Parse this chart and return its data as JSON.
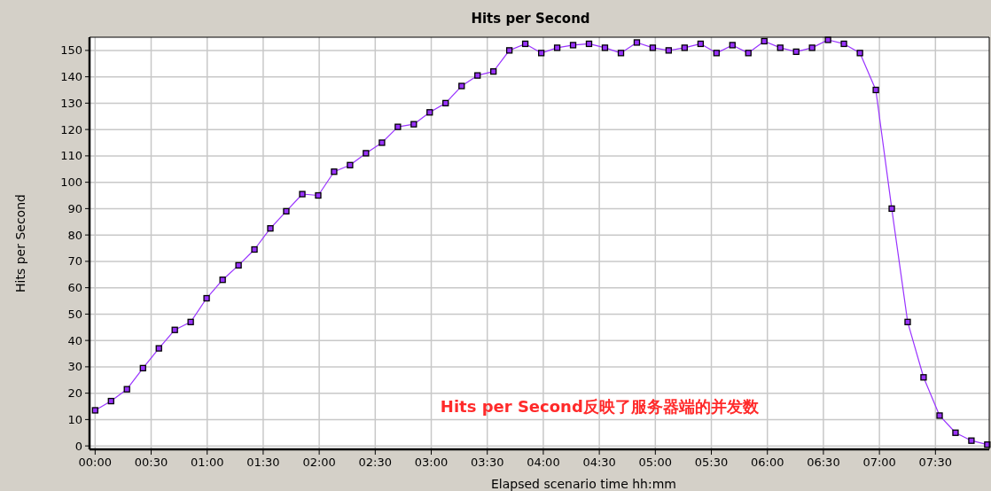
{
  "chart_data": {
    "type": "line",
    "title": "Hits per Second",
    "xlabel": "Elapsed scenario time hh:mm",
    "ylabel": "Hits per Second",
    "annotations": [
      "Hits per Second反映了服务器端的并发数"
    ],
    "x": [
      0,
      0.142,
      0.284,
      0.427,
      0.569,
      0.711,
      0.853,
      0.995,
      1.138,
      1.28,
      1.422,
      1.564,
      1.706,
      1.849,
      1.991,
      2.133,
      2.275,
      2.417,
      2.56,
      2.702,
      2.844,
      2.986,
      3.128,
      3.271,
      3.413,
      3.555,
      3.697,
      3.839,
      3.982,
      4.124,
      4.266,
      4.408,
      4.55,
      4.693,
      4.835,
      4.977,
      5.119,
      5.261,
      5.404,
      5.546,
      5.688,
      5.83,
      5.972,
      6.115,
      6.257,
      6.399,
      6.541,
      6.683,
      6.826,
      6.968,
      7.11,
      7.252,
      7.394,
      7.537,
      7.679,
      7.821,
      7.963
    ],
    "series": [
      {
        "color": "#9933ff",
        "values": [
          13.5,
          17,
          21.5,
          29.5,
          37,
          44,
          47,
          56,
          63,
          68.5,
          74.5,
          82.5,
          89,
          95.5,
          95,
          104,
          106.5,
          111,
          115,
          121,
          122,
          126.5,
          130,
          136.5,
          140.5,
          142,
          150,
          152.5,
          149,
          151,
          152,
          152.5,
          151,
          149,
          153,
          151,
          150,
          151,
          152.5,
          149,
          152,
          149,
          153.5,
          151,
          149.5,
          151,
          154,
          152.5,
          149,
          135,
          90,
          47,
          26,
          11.5,
          5,
          2,
          0.5
        ]
      }
    ],
    "xlim": [
      -0.05,
      7.98
    ],
    "ylim": [
      -1.3,
      155
    ],
    "xticks": [
      {
        "value": 0,
        "label": "00:00"
      },
      {
        "value": 0.5,
        "label": "00:30"
      },
      {
        "value": 1,
        "label": "01:00"
      },
      {
        "value": 1.5,
        "label": "01:30"
      },
      {
        "value": 2,
        "label": "02:00"
      },
      {
        "value": 2.5,
        "label": "02:30"
      },
      {
        "value": 3,
        "label": "03:00"
      },
      {
        "value": 3.5,
        "label": "03:30"
      },
      {
        "value": 4,
        "label": "04:00"
      },
      {
        "value": 4.5,
        "label": "04:30"
      },
      {
        "value": 5,
        "label": "05:00"
      },
      {
        "value": 5.5,
        "label": "05:30"
      },
      {
        "value": 6,
        "label": "06:00"
      },
      {
        "value": 6.5,
        "label": "06:30"
      },
      {
        "value": 7,
        "label": "07:00"
      },
      {
        "value": 7.5,
        "label": "07:30"
      }
    ],
    "yticks": [
      0,
      10,
      20,
      30,
      40,
      50,
      60,
      70,
      80,
      90,
      100,
      110,
      120,
      130,
      140,
      150
    ],
    "grid": true,
    "marker": "square",
    "line_style": "solid"
  }
}
